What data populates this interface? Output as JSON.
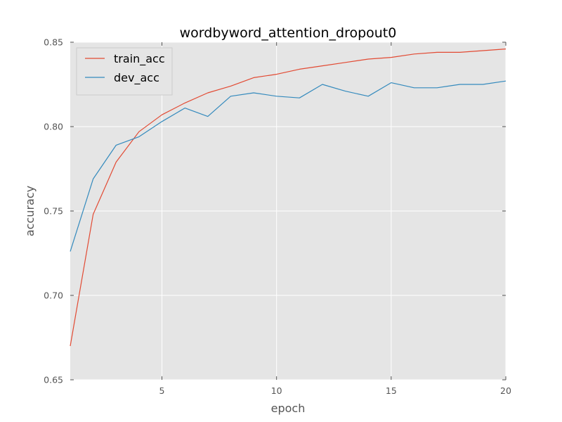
{
  "chart_data": {
    "type": "line",
    "title": "wordbyword_attention_dropout0",
    "xlabel": "epoch",
    "ylabel": "accuracy",
    "xlim": [
      1,
      20
    ],
    "ylim": [
      0.65,
      0.85
    ],
    "xticks": [
      5,
      10,
      15,
      20
    ],
    "xtick_labels": [
      "5",
      "10",
      "15",
      "20"
    ],
    "yticks": [
      0.65,
      0.7,
      0.75,
      0.8,
      0.85
    ],
    "ytick_labels": [
      "0.65",
      "0.70",
      "0.75",
      "0.80",
      "0.85"
    ],
    "grid": true,
    "legend_position": "top-left",
    "background_color": "#e5e5e5",
    "grid_color": "#ffffff",
    "x": [
      1,
      2,
      3,
      4,
      5,
      6,
      7,
      8,
      9,
      10,
      11,
      12,
      13,
      14,
      15,
      16,
      17,
      18,
      19,
      20
    ],
    "series": [
      {
        "name": "train_acc",
        "color": "#e24a33",
        "values": [
          0.67,
          0.748,
          0.779,
          0.797,
          0.807,
          0.814,
          0.82,
          0.824,
          0.829,
          0.831,
          0.834,
          0.836,
          0.838,
          0.84,
          0.841,
          0.843,
          0.844,
          0.844,
          0.845,
          0.846
        ]
      },
      {
        "name": "dev_acc",
        "color": "#348abd",
        "values": [
          0.726,
          0.769,
          0.789,
          0.794,
          0.803,
          0.811,
          0.806,
          0.818,
          0.82,
          0.818,
          0.817,
          0.825,
          0.821,
          0.818,
          0.826,
          0.823,
          0.823,
          0.825,
          0.825,
          0.827
        ]
      }
    ]
  }
}
